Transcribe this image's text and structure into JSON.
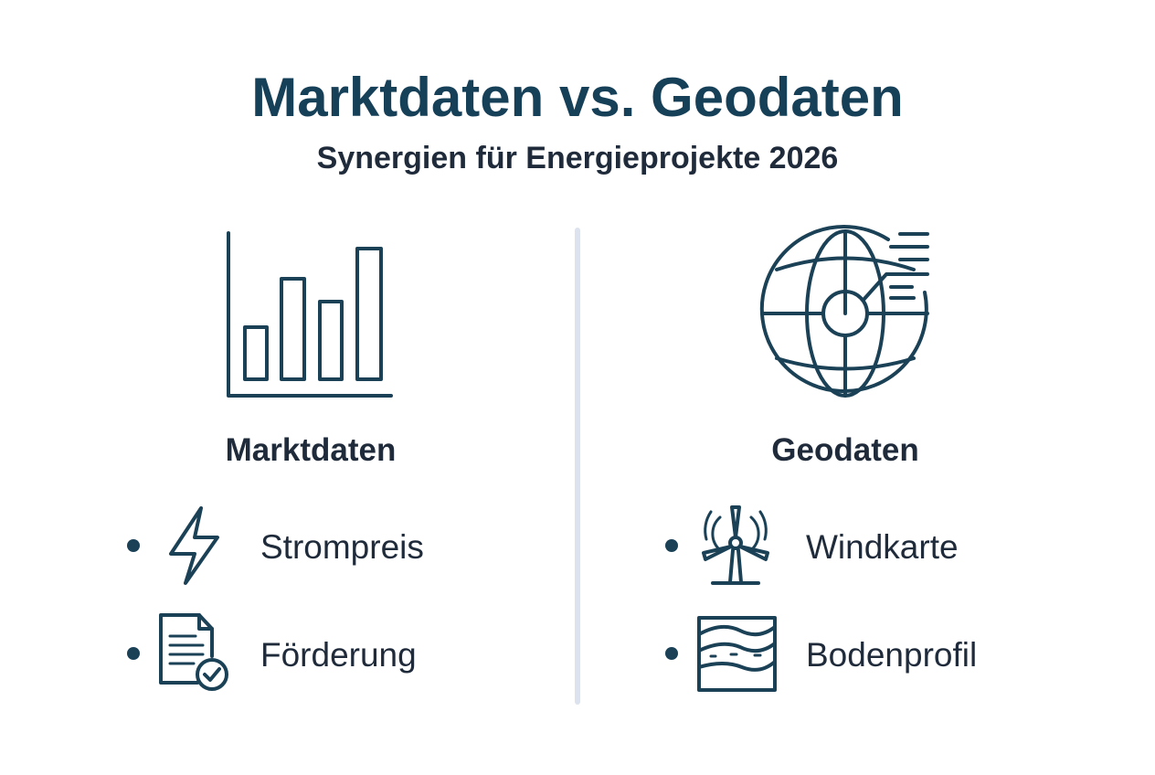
{
  "header": {
    "title": "Marktdaten vs. Geodaten",
    "subtitle": "Synergien für Energieprojekte 2026"
  },
  "columns": [
    {
      "heading": "Marktdaten",
      "items": [
        "Strompreis",
        "Förderung"
      ]
    },
    {
      "heading": "Geodaten",
      "items": [
        "Windkarte",
        "Bodenprofil"
      ]
    }
  ]
}
